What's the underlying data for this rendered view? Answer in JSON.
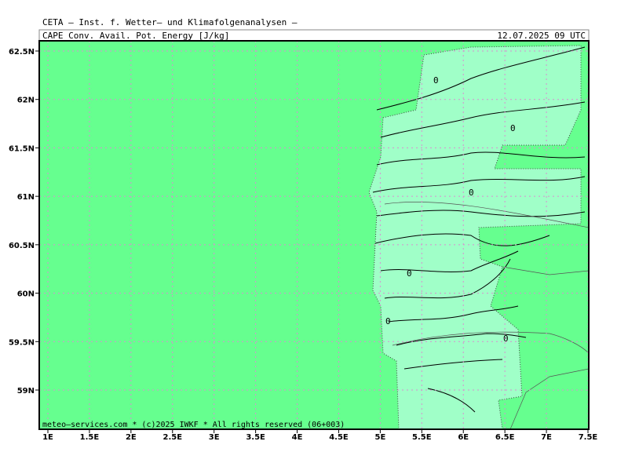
{
  "header": {
    "title": "CETA – Inst. f. Wetter– und Klimafolgenanalysen –",
    "subtitle": "CAPE_Conv._Avail._Pot._Energy_[J/kg]",
    "date": "12.07.2025 09 UTC"
  },
  "axes": {
    "x_ticks": [
      "1E",
      "1.5E",
      "2E",
      "2.5E",
      "3E",
      "3.5E",
      "4E",
      "4.5E",
      "5E",
      "5.5E",
      "6E",
      "6.5E",
      "7E",
      "7.5E"
    ],
    "y_ticks": [
      "62.5N",
      "62N",
      "61.5N",
      "61N",
      "60.5N",
      "60N",
      "59.5N",
      "59N"
    ]
  },
  "footer": "meteo–services.com * (c)2025 IWKF * All rights reserved (06+003)",
  "contour_labels": [
    "0",
    "0",
    "0",
    "0",
    "0",
    "0"
  ]
}
